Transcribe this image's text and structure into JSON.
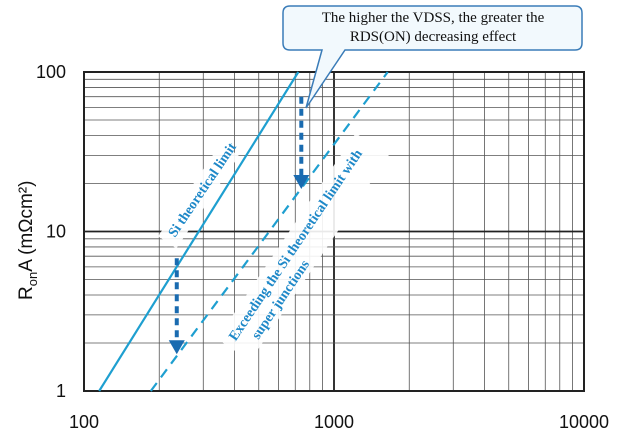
{
  "chart_data": {
    "type": "line",
    "xscale": "log",
    "yscale": "log",
    "xlim": [
      100,
      10000
    ],
    "ylim": [
      1,
      100
    ],
    "x_ticks": [
      "100",
      "1000",
      "10000"
    ],
    "y_ticks": [
      "100",
      "10",
      "1"
    ],
    "ylabel": {
      "main": "R",
      "sub": "on",
      "rest": "A (mΩcm²)"
    },
    "xlabel": "",
    "grid": true,
    "series": [
      {
        "name": "Si theoretical limit",
        "style": "solid",
        "color": "#1e9fd0",
        "x": [
          115,
          720
        ],
        "y": [
          1,
          100
        ]
      },
      {
        "name": "Exceeding the Si theoretical limit with super junctions",
        "style": "dashed",
        "color": "#1e9fd0",
        "x": [
          185,
          1640
        ],
        "y": [
          1,
          100
        ]
      }
    ],
    "annotations": {
      "callout": [
        "The higher the VDSS, the greater the",
        "RDS(ON) decreasing effect"
      ],
      "line_label_1": "Si theoretical limit",
      "line_label_2": [
        "Exceeding the Si theoretical limit with",
        "super junctions"
      ]
    },
    "arrows": [
      {
        "x": 740,
        "y_from": 70,
        "y_to": 19
      },
      {
        "x": 235,
        "y_from": 6.8,
        "y_to": 1.75
      }
    ],
    "colors": {
      "line": "#1e9fd0",
      "arrow": "#1a6bb0",
      "callout_border": "#3a7cb8",
      "callout_fill": "#f2f9fd"
    }
  }
}
